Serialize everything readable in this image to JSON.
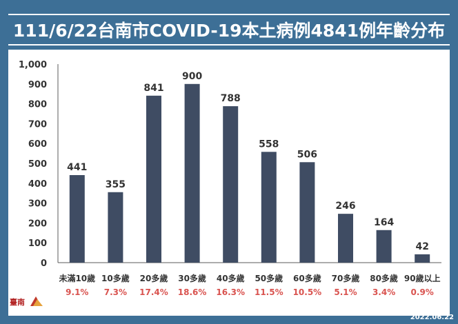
{
  "title": "111/6/22台南市COVID-19本土病例4841例年齡分布",
  "date": "2022.06.22",
  "colors": {
    "background": "#3d6f96",
    "bar": "#3f4c63",
    "percent": "#d9534f",
    "text": "#333333",
    "grid": "#d9d9d9"
  },
  "logo": {
    "text": "臺南",
    "icon": "tainan-city-logo-icon"
  },
  "chart_data": {
    "type": "bar",
    "categories": [
      "未滿10歲",
      "10多歲",
      "20多歲",
      "30多歲",
      "40多歲",
      "50多歲",
      "60多歲",
      "70多歲",
      "80多歲",
      "90歲以上"
    ],
    "values": [
      441,
      355,
      841,
      900,
      788,
      558,
      506,
      246,
      164,
      42
    ],
    "value_labels": [
      "441",
      "355",
      "841",
      "900",
      "788",
      "558",
      "506",
      "246",
      "164",
      "42"
    ],
    "percentages": [
      "9.1%",
      "7.3%",
      "17.4%",
      "18.6%",
      "16.3%",
      "11.5%",
      "10.5%",
      "5.1%",
      "3.4%",
      "0.9%"
    ],
    "ylim": [
      0,
      1000
    ],
    "yticks": [
      "0",
      "100",
      "200",
      "300",
      "400",
      "500",
      "600",
      "700",
      "800",
      "900",
      "1,000"
    ],
    "grid": false,
    "xlabel": "",
    "ylabel": ""
  }
}
